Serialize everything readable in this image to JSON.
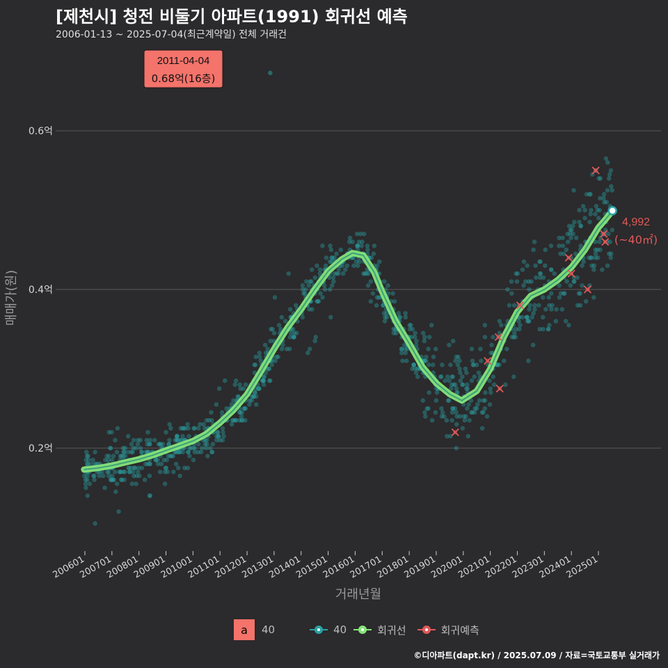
{
  "header": {
    "title": "[제천시] 청전 비둘기 아파트(1991) 회귀선 예측",
    "subtitle": "2006-01-13 ~ 2025-07-04(최근계약일) 전체 거래건"
  },
  "footer": {
    "credit": "©디아파트(dapt.kr) / 2025.07.09 / 자료=국토교통부 실거래가"
  },
  "legend": {
    "box_letter": "a",
    "box_label": "40",
    "items": [
      {
        "label": "40",
        "color": "#2aa3a5"
      },
      {
        "label": "회귀선",
        "color": "#86e57a"
      },
      {
        "label": "회귀예측",
        "color": "#e05a5a"
      }
    ]
  },
  "callout": {
    "date": "2011-04-04",
    "value": "0.68억(16층)",
    "x": 2011.26,
    "y": 0.68
  },
  "end_label": {
    "price": "4,992",
    "area": "(~40㎡)"
  },
  "colors": {
    "scatter": "#2aa3a5",
    "regression": "#86e57a",
    "regression_core": "#3fa07a",
    "prediction": "#e05a5a",
    "callout_bg": "#f4736b",
    "grid": "#5a5a5a"
  },
  "chart_data": {
    "type": "scatter",
    "title": "[제천시] 청전 비둘기 아파트(1991) 회귀선 예측",
    "xlabel": "거래년월",
    "ylabel": "매매가(원)",
    "xlim": [
      2005.5,
      2025.9
    ],
    "ylim": [
      0.08,
      0.75
    ],
    "x_ticks": [
      2006,
      2007,
      2008,
      2009,
      2010,
      2011,
      2012,
      2013,
      2014,
      2015,
      2016,
      2017,
      2018,
      2019,
      2020,
      2021,
      2022,
      2023,
      2024,
      2025
    ],
    "x_tick_labels": [
      "200601",
      "200701",
      "200801",
      "200901",
      "201001",
      "201101",
      "201201",
      "201301",
      "201401",
      "201501",
      "201601",
      "201701",
      "201801",
      "201901",
      "202001",
      "202101",
      "202201",
      "202301",
      "202401",
      "202501"
    ],
    "y_ticks": [
      0.2,
      0.4,
      0.6
    ],
    "y_tick_labels": [
      "0.2억",
      "0.4억",
      "0.6억"
    ],
    "series": [
      {
        "name": "회귀선",
        "x": [
          2005.97,
          2006.5,
          2007.0,
          2007.5,
          2008.0,
          2008.5,
          2009.0,
          2009.5,
          2010.0,
          2010.5,
          2011.0,
          2011.5,
          2012.0,
          2012.5,
          2013.0,
          2013.5,
          2014.0,
          2014.5,
          2015.0,
          2015.5,
          2015.9,
          2016.3,
          2016.7,
          2017.0,
          2017.5,
          2018.0,
          2018.5,
          2019.0,
          2019.5,
          2019.95,
          2020.5,
          2021.0,
          2021.5,
          2022.0,
          2022.5,
          2023.0,
          2023.5,
          2024.0,
          2024.5,
          2025.0,
          2025.3,
          2025.52
        ],
        "y": [
          0.173,
          0.175,
          0.178,
          0.182,
          0.186,
          0.191,
          0.197,
          0.203,
          0.209,
          0.218,
          0.232,
          0.248,
          0.268,
          0.296,
          0.325,
          0.352,
          0.375,
          0.4,
          0.423,
          0.438,
          0.446,
          0.443,
          0.422,
          0.397,
          0.36,
          0.332,
          0.302,
          0.282,
          0.268,
          0.26,
          0.272,
          0.3,
          0.34,
          0.372,
          0.392,
          0.4,
          0.412,
          0.428,
          0.45,
          0.478,
          0.49,
          0.4992
        ]
      },
      {
        "name": "회귀예측",
        "x": [
          2019.7,
          2020.9,
          2021.3,
          2021.35,
          2022.1,
          2023.9,
          2024.0,
          2024.6,
          2024.9,
          2025.2,
          2025.25
        ],
        "y": [
          0.22,
          0.31,
          0.34,
          0.275,
          0.38,
          0.44,
          0.42,
          0.4,
          0.55,
          0.47,
          0.46
        ]
      }
    ],
    "scatter_note": "individual transactions (~40㎡) clustered along the regression line"
  }
}
